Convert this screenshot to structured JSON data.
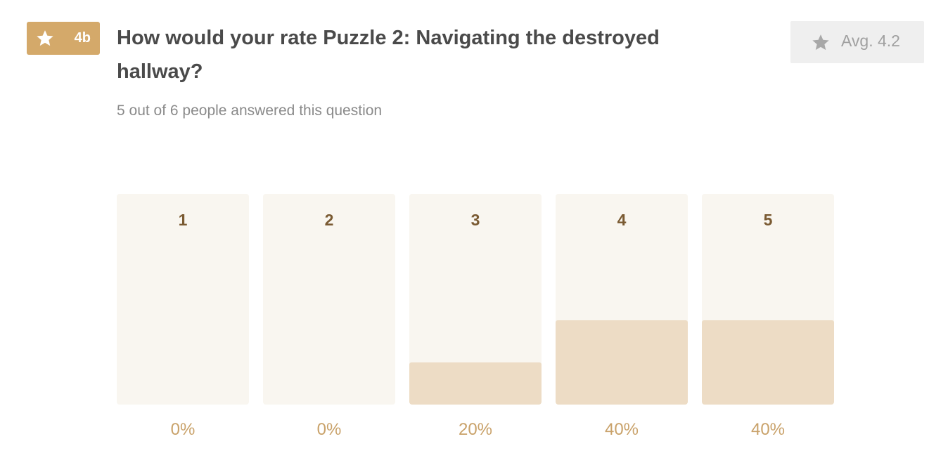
{
  "badge": {
    "icon": "star-icon",
    "label": "4b",
    "color": "#d4a96a"
  },
  "question": {
    "title": "How would your rate Puzzle 2: Navigating the destroyed hallway?",
    "answered": "5 out of 6 people answered this question"
  },
  "average": {
    "icon": "star-icon",
    "label": "Avg. 4.2"
  },
  "chart_data": {
    "type": "bar",
    "categories": [
      "1",
      "2",
      "3",
      "4",
      "5"
    ],
    "values": [
      0,
      0,
      20,
      40,
      40
    ],
    "value_labels": [
      "0%",
      "0%",
      "20%",
      "40%",
      "40%"
    ],
    "ylim": [
      0,
      100
    ],
    "grid": false,
    "colors": {
      "track": "#f9f6f0",
      "fill": "#eddcc5",
      "category_text": "#7a5a32",
      "percent_text": "#c9a26a"
    }
  }
}
